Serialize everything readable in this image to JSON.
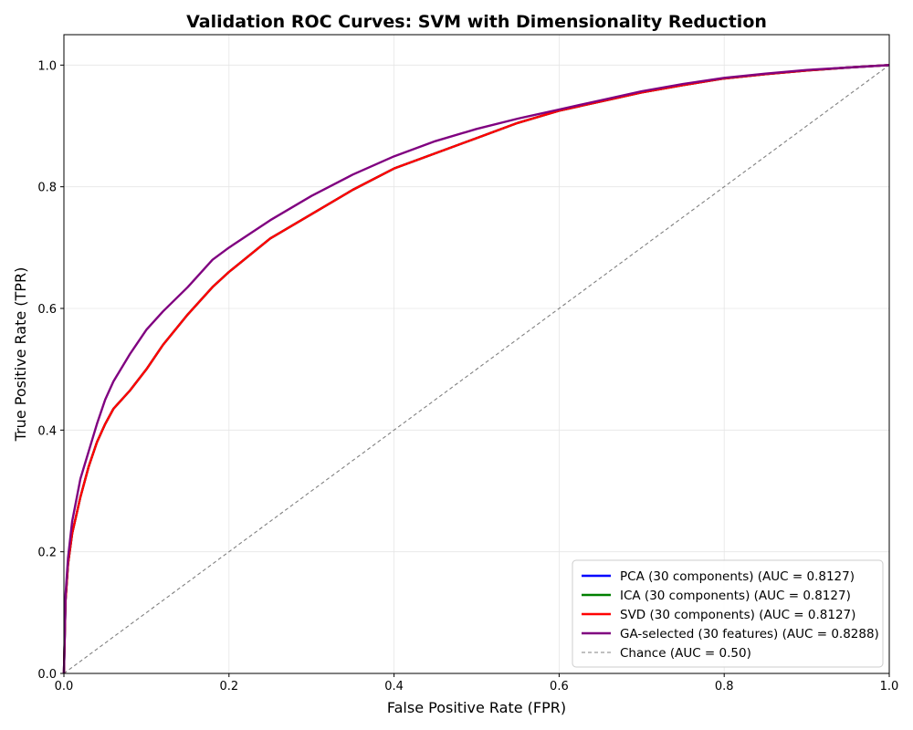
{
  "chart_data": {
    "type": "line",
    "title": "Validation ROC Curves: SVM with Dimensionality Reduction",
    "xlabel": "False Positive Rate (FPR)",
    "ylabel": "True Positive Rate (TPR)",
    "xlim": [
      0.0,
      1.0
    ],
    "ylim": [
      0.0,
      1.05
    ],
    "xticks": [
      0.0,
      0.2,
      0.4,
      0.6,
      0.8,
      1.0
    ],
    "yticks": [
      0.0,
      0.2,
      0.4,
      0.6,
      0.8,
      1.0
    ],
    "xtick_labels": [
      "0.0",
      "0.2",
      "0.4",
      "0.6",
      "0.8",
      "1.0"
    ],
    "ytick_labels": [
      "0.0",
      "0.2",
      "0.4",
      "0.6",
      "0.8",
      "1.0"
    ],
    "grid": true,
    "legend_position": "lower-right",
    "series": [
      {
        "name": "PCA (30 components) (AUC = 0.8127)",
        "color": "#0000ff",
        "style": "solid",
        "points": [
          [
            0,
            0
          ],
          [
            0.002,
            0.12
          ],
          [
            0.005,
            0.18
          ],
          [
            0.01,
            0.23
          ],
          [
            0.02,
            0.29
          ],
          [
            0.03,
            0.34
          ],
          [
            0.04,
            0.38
          ],
          [
            0.05,
            0.41
          ],
          [
            0.06,
            0.435
          ],
          [
            0.08,
            0.465
          ],
          [
            0.1,
            0.5
          ],
          [
            0.12,
            0.54
          ],
          [
            0.15,
            0.59
          ],
          [
            0.18,
            0.635
          ],
          [
            0.2,
            0.66
          ],
          [
            0.25,
            0.715
          ],
          [
            0.3,
            0.755
          ],
          [
            0.35,
            0.795
          ],
          [
            0.4,
            0.83
          ],
          [
            0.45,
            0.855
          ],
          [
            0.5,
            0.88
          ],
          [
            0.55,
            0.905
          ],
          [
            0.6,
            0.925
          ],
          [
            0.65,
            0.94
          ],
          [
            0.7,
            0.955
          ],
          [
            0.75,
            0.967
          ],
          [
            0.8,
            0.978
          ],
          [
            0.85,
            0.985
          ],
          [
            0.9,
            0.991
          ],
          [
            0.95,
            0.996
          ],
          [
            1.0,
            1.0
          ]
        ]
      },
      {
        "name": "ICA (30 components) (AUC = 0.8127)",
        "color": "#008000",
        "style": "solid",
        "points": [
          [
            0,
            0
          ],
          [
            0.002,
            0.12
          ],
          [
            0.005,
            0.18
          ],
          [
            0.01,
            0.23
          ],
          [
            0.02,
            0.29
          ],
          [
            0.03,
            0.34
          ],
          [
            0.04,
            0.38
          ],
          [
            0.05,
            0.41
          ],
          [
            0.06,
            0.435
          ],
          [
            0.08,
            0.465
          ],
          [
            0.1,
            0.5
          ],
          [
            0.12,
            0.54
          ],
          [
            0.15,
            0.59
          ],
          [
            0.18,
            0.635
          ],
          [
            0.2,
            0.66
          ],
          [
            0.25,
            0.715
          ],
          [
            0.3,
            0.755
          ],
          [
            0.35,
            0.795
          ],
          [
            0.4,
            0.83
          ],
          [
            0.45,
            0.855
          ],
          [
            0.5,
            0.88
          ],
          [
            0.55,
            0.905
          ],
          [
            0.6,
            0.925
          ],
          [
            0.65,
            0.94
          ],
          [
            0.7,
            0.955
          ],
          [
            0.75,
            0.967
          ],
          [
            0.8,
            0.978
          ],
          [
            0.85,
            0.985
          ],
          [
            0.9,
            0.991
          ],
          [
            0.95,
            0.996
          ],
          [
            1.0,
            1.0
          ]
        ]
      },
      {
        "name": "SVD (30 components) (AUC = 0.8127)",
        "color": "#ff0000",
        "style": "solid",
        "points": [
          [
            0,
            0
          ],
          [
            0.002,
            0.12
          ],
          [
            0.005,
            0.18
          ],
          [
            0.01,
            0.23
          ],
          [
            0.02,
            0.29
          ],
          [
            0.03,
            0.34
          ],
          [
            0.04,
            0.38
          ],
          [
            0.05,
            0.41
          ],
          [
            0.06,
            0.435
          ],
          [
            0.08,
            0.465
          ],
          [
            0.1,
            0.5
          ],
          [
            0.12,
            0.54
          ],
          [
            0.15,
            0.59
          ],
          [
            0.18,
            0.635
          ],
          [
            0.2,
            0.66
          ],
          [
            0.25,
            0.715
          ],
          [
            0.3,
            0.755
          ],
          [
            0.35,
            0.795
          ],
          [
            0.4,
            0.83
          ],
          [
            0.45,
            0.855
          ],
          [
            0.5,
            0.88
          ],
          [
            0.55,
            0.905
          ],
          [
            0.6,
            0.925
          ],
          [
            0.65,
            0.94
          ],
          [
            0.7,
            0.955
          ],
          [
            0.75,
            0.967
          ],
          [
            0.8,
            0.978
          ],
          [
            0.85,
            0.985
          ],
          [
            0.9,
            0.991
          ],
          [
            0.95,
            0.996
          ],
          [
            1.0,
            1.0
          ]
        ]
      },
      {
        "name": "GA-selected (30 features) (AUC = 0.8288)",
        "color": "#800080",
        "style": "solid",
        "points": [
          [
            0,
            0
          ],
          [
            0.002,
            0.13
          ],
          [
            0.005,
            0.19
          ],
          [
            0.01,
            0.25
          ],
          [
            0.02,
            0.32
          ],
          [
            0.03,
            0.365
          ],
          [
            0.04,
            0.41
          ],
          [
            0.05,
            0.45
          ],
          [
            0.06,
            0.48
          ],
          [
            0.08,
            0.525
          ],
          [
            0.1,
            0.565
          ],
          [
            0.12,
            0.595
          ],
          [
            0.15,
            0.635
          ],
          [
            0.18,
            0.68
          ],
          [
            0.2,
            0.7
          ],
          [
            0.25,
            0.745
          ],
          [
            0.3,
            0.785
          ],
          [
            0.35,
            0.82
          ],
          [
            0.4,
            0.85
          ],
          [
            0.45,
            0.875
          ],
          [
            0.5,
            0.895
          ],
          [
            0.55,
            0.912
          ],
          [
            0.6,
            0.927
          ],
          [
            0.65,
            0.942
          ],
          [
            0.7,
            0.957
          ],
          [
            0.75,
            0.969
          ],
          [
            0.8,
            0.979
          ],
          [
            0.85,
            0.986
          ],
          [
            0.9,
            0.992
          ],
          [
            0.95,
            0.996
          ],
          [
            1.0,
            1.0
          ]
        ]
      },
      {
        "name": "Chance (AUC = 0.50)",
        "color": "#808080",
        "style": "dashed",
        "points": [
          [
            0,
            0
          ],
          [
            1,
            1
          ]
        ]
      }
    ]
  }
}
